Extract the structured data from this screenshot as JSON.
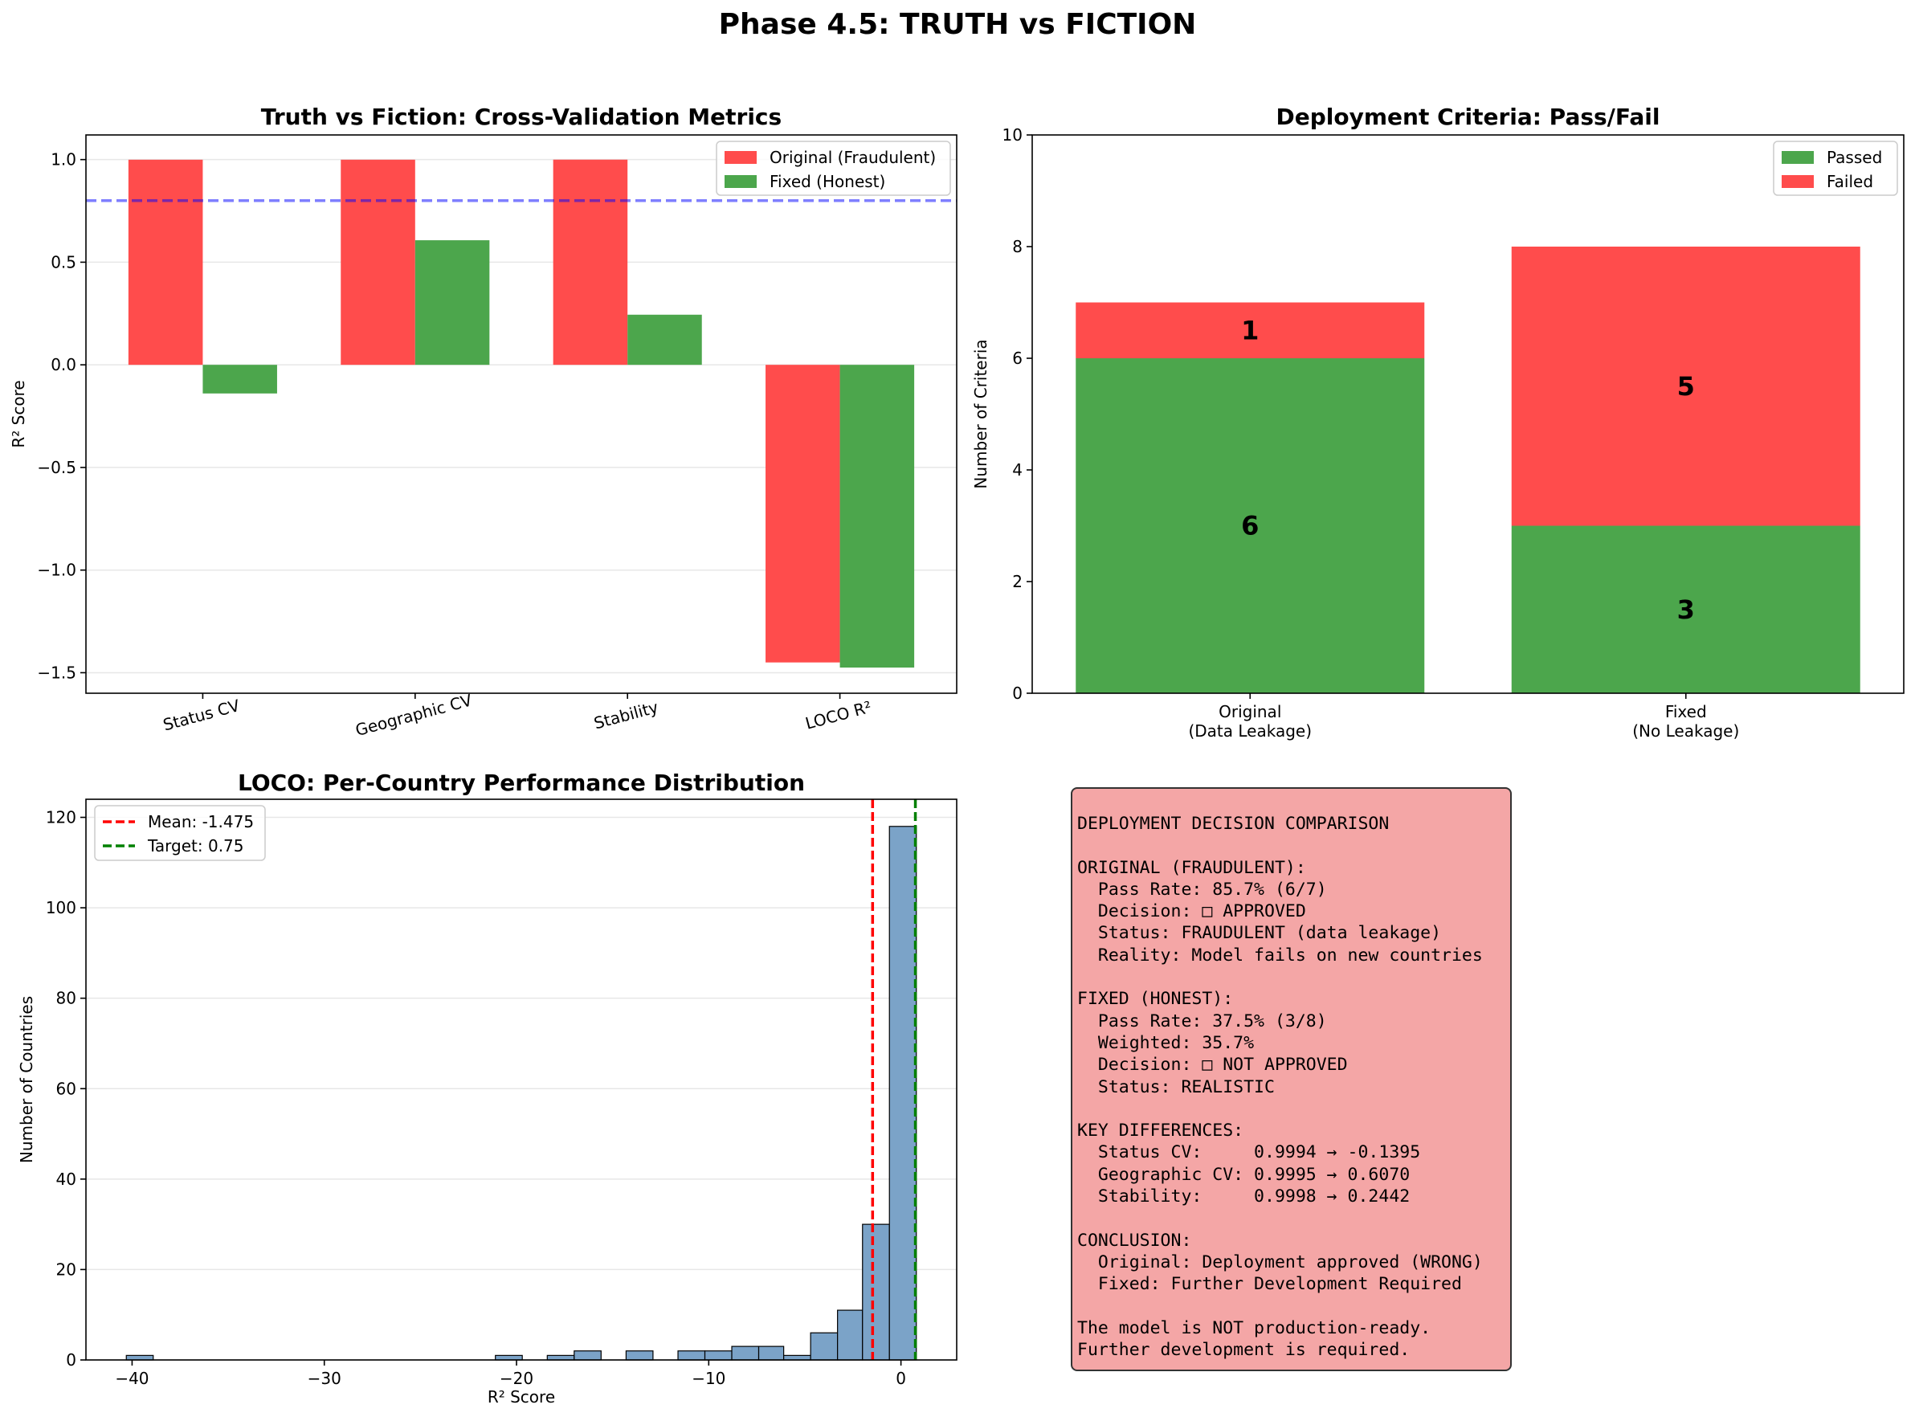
{
  "suptitle": "Phase 4.5: TRUTH vs FICTION",
  "chart_data": [
    {
      "type": "bar",
      "title": "Truth vs Fiction: Cross-Validation Metrics",
      "xlabel": "",
      "ylabel": "R² Score",
      "categories": [
        "Status CV",
        "Geographic CV",
        "Stability",
        "LOCO R²"
      ],
      "series": [
        {
          "name": "Original (Fraudulent)",
          "values": [
            0.9994,
            0.9995,
            0.9998,
            -1.45
          ],
          "color": "#ff4c4c"
        },
        {
          "name": "Fixed (Honest)",
          "values": [
            -0.1395,
            0.607,
            0.2442,
            -1.475
          ],
          "color": "#4ca64c"
        }
      ],
      "ylim": [
        -1.6,
        1.12
      ],
      "yticks": [
        -1.5,
        -1.0,
        -0.5,
        0.0,
        0.5,
        1.0
      ],
      "ytick_labels": [
        "−1.5",
        "−1.0",
        "−0.5",
        "0.0",
        "0.5",
        "1.0"
      ],
      "reference_line": {
        "value": 0.8,
        "color": "#0000ff",
        "style": "dashed"
      },
      "grid": "y",
      "legend": "upper-right"
    },
    {
      "type": "bar",
      "stacked": true,
      "title": "Deployment Criteria: Pass/Fail",
      "xlabel": "",
      "ylabel": "Number of Criteria",
      "categories": [
        "Original\n(Data Leakage)",
        "Fixed\n(No Leakage)"
      ],
      "series": [
        {
          "name": "Passed",
          "values": [
            6,
            3
          ],
          "color": "#4ca64c"
        },
        {
          "name": "Failed",
          "values": [
            1,
            5
          ],
          "color": "#ff4c4c"
        }
      ],
      "ylim": [
        0,
        10
      ],
      "yticks": [
        0,
        2,
        4,
        6,
        8,
        10
      ],
      "ytick_labels": [
        "0",
        "2",
        "4",
        "6",
        "8",
        "10"
      ],
      "data_labels": true,
      "legend": "upper-right"
    },
    {
      "type": "histogram",
      "title": "LOCO: Per-Country Performance Distribution",
      "xlabel": "R² Score",
      "ylabel": "Number of Countries",
      "bins": [
        {
          "x0": -40.3,
          "x1": -38.9,
          "count": 1
        },
        {
          "x0": -21.1,
          "x1": -19.7,
          "count": 1
        },
        {
          "x0": -18.4,
          "x1": -17.0,
          "count": 1
        },
        {
          "x0": -17.0,
          "x1": -15.6,
          "count": 2
        },
        {
          "x0": -14.3,
          "x1": -12.9,
          "count": 2
        },
        {
          "x0": -11.6,
          "x1": -10.2,
          "count": 2
        },
        {
          "x0": -10.2,
          "x1": -8.8,
          "count": 2
        },
        {
          "x0": -8.8,
          "x1": -7.4,
          "count": 3
        },
        {
          "x0": -7.4,
          "x1": -6.1,
          "count": 3
        },
        {
          "x0": -6.1,
          "x1": -4.7,
          "count": 1
        },
        {
          "x0": -4.7,
          "x1": -3.3,
          "count": 6
        },
        {
          "x0": -3.3,
          "x1": -2.0,
          "count": 11
        },
        {
          "x0": -2.0,
          "x1": -0.6,
          "count": 30
        },
        {
          "x0": -0.6,
          "x1": 0.8,
          "count": 118
        }
      ],
      "xlim": [
        -42.4,
        2.9
      ],
      "ylim": [
        0,
        124
      ],
      "xticks": [
        -40,
        -30,
        -20,
        -10,
        0
      ],
      "xtick_labels": [
        "−40",
        "−30",
        "−20",
        "−10",
        "0"
      ],
      "yticks": [
        0,
        20,
        40,
        60,
        80,
        100,
        120
      ],
      "ytick_labels": [
        "0",
        "20",
        "40",
        "60",
        "80",
        "100",
        "120"
      ],
      "vlines": [
        {
          "value": -1.475,
          "label": "Mean: -1.475",
          "color": "#ff0000"
        },
        {
          "value": 0.75,
          "label": "Target: 0.75",
          "color": "#008000"
        }
      ],
      "bar_color": "#7ba3c8",
      "grid": "y",
      "legend": "upper-left"
    }
  ],
  "summary_box": {
    "lines": [
      "DEPLOYMENT DECISION COMPARISON",
      "",
      "ORIGINAL (FRAUDULENT):",
      "  Pass Rate: 85.7% (6/7)",
      "  Decision: □ APPROVED",
      "  Status: FRAUDULENT (data leakage)",
      "  Reality: Model fails on new countries",
      "",
      "FIXED (HONEST):",
      "  Pass Rate: 37.5% (3/8)",
      "  Weighted: 35.7%",
      "  Decision: □ NOT APPROVED",
      "  Status: REALISTIC",
      "",
      "KEY DIFFERENCES:",
      "  Status CV:     0.9994 → -0.1395",
      "  Geographic CV: 0.9995 → 0.6070",
      "  Stability:     0.9998 → 0.2442",
      "",
      "CONCLUSION:",
      "  Original: Deployment approved (WRONG)",
      "  Fixed: Further Development Required",
      "",
      "The model is NOT production-ready.",
      "Further development is required."
    ]
  }
}
